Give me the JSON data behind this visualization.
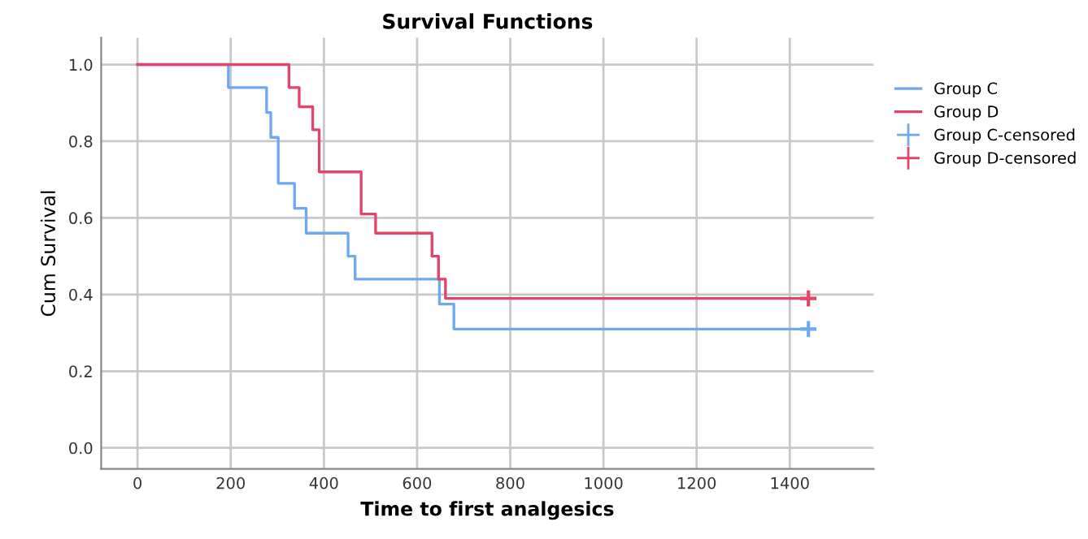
{
  "chart_data": {
    "type": "step",
    "title": "Survival Functions",
    "xlabel": "Time to first analgesics",
    "ylabel": "Cum Survival",
    "series": [
      {
        "name": "Group C",
        "color": "#6fa8f0",
        "x": [
          0,
          195,
          277,
          286,
          302,
          337,
          362,
          452,
          467,
          648,
          679,
          1440
        ],
        "values": [
          1.0,
          0.94,
          0.875,
          0.81,
          0.69,
          0.625,
          0.56,
          0.5,
          0.44,
          0.375,
          0.31,
          0.31
        ]
      },
      {
        "name": "Group D",
        "color": "#e0456a",
        "x": [
          0,
          325,
          347,
          376,
          390,
          480,
          511,
          632,
          646,
          661,
          1440
        ],
        "values": [
          1.0,
          0.94,
          0.89,
          0.83,
          0.72,
          0.61,
          0.56,
          0.5,
          0.44,
          0.39,
          0.39
        ]
      },
      {
        "name": "Group C-censored",
        "type": "scatter",
        "marker": "cross",
        "color": "#6fa8f0",
        "x": [
          1440
        ],
        "values": [
          0.31
        ]
      },
      {
        "name": "Group D-censored",
        "type": "scatter",
        "marker": "cross",
        "color": "#e0456a",
        "x": [
          1440
        ],
        "values": [
          0.39
        ]
      }
    ],
    "xlim": [
      -78,
      1580
    ],
    "ylim": [
      -0.055,
      1.07
    ],
    "xticks": [
      0,
      200,
      400,
      600,
      800,
      1000,
      1200,
      1400
    ],
    "yticks": [
      {
        "value": 0,
        "label": "0.0"
      },
      {
        "value": 0.2,
        "label": "0.2"
      },
      {
        "value": 0.4,
        "label": "0.4"
      },
      {
        "value": 0.6,
        "label": "0.6"
      },
      {
        "value": 0.8,
        "label": "0.8"
      },
      {
        "value": 1,
        "label": "1.0"
      }
    ],
    "grid": true,
    "legend": "top right"
  }
}
